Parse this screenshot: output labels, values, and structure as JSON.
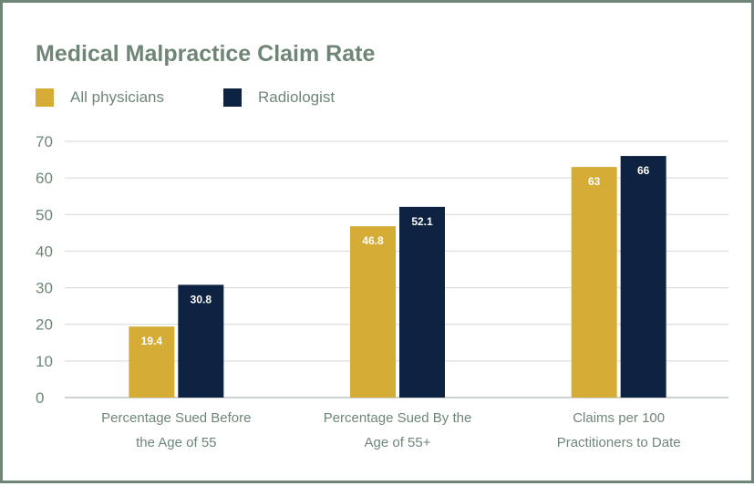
{
  "chart_data": {
    "type": "bar",
    "title": "Medical Malpractice Claim Rate",
    "categories": [
      "Percentage Sued Before the Age of 55",
      "Percentage Sued By the Age of 55+",
      "Claims per 100 Practitioners to Date"
    ],
    "category_lines": [
      [
        "Percentage Sued Before",
        "the Age of 55"
      ],
      [
        "Percentage Sued By the",
        "Age of 55+"
      ],
      [
        "Claims per 100",
        "Practitioners to Date"
      ]
    ],
    "series": [
      {
        "name": "All physicians",
        "color": "#d5ad36",
        "values": [
          19.4,
          46.8,
          63
        ],
        "labels": [
          "19.4",
          "46.8",
          "63"
        ]
      },
      {
        "name": "Radiologist",
        "color": "#0e2241",
        "values": [
          30.8,
          52.1,
          66
        ],
        "labels": [
          "30.8",
          "52.1",
          "66"
        ]
      }
    ],
    "ylim": [
      0,
      70
    ],
    "yticks": [
      "0",
      "10",
      "20",
      "30",
      "40",
      "50",
      "60",
      "70"
    ],
    "xlabel": "",
    "ylabel": "",
    "grid": true,
    "legend": "top-left"
  }
}
